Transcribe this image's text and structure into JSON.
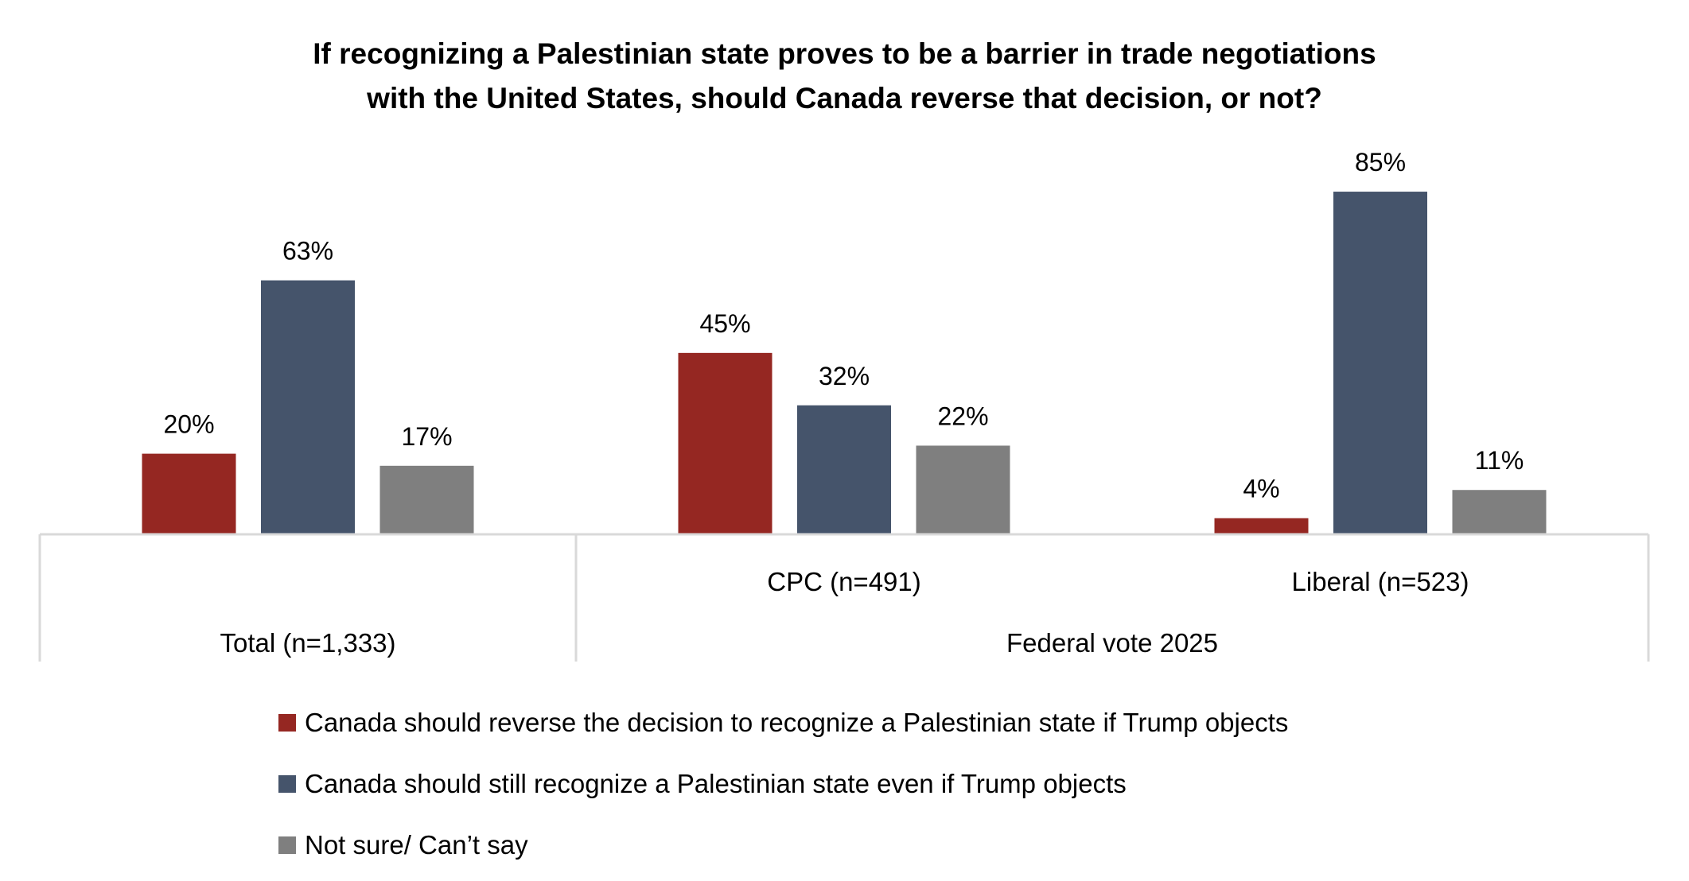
{
  "chart_data": {
    "type": "bar",
    "title": "If recognizing a Palestinian state proves to be a barrier in trade negotiations with the United States, should Canada reverse that decision, or not?",
    "title_lines": [
      "If recognizing a Palestinian state proves to be a barrier in trade negotiations",
      "with the United States, should Canada reverse that decision, or not?"
    ],
    "xlabel": "",
    "ylabel": "",
    "ylim": [
      0,
      100
    ],
    "grid": false,
    "value_suffix": "%",
    "categories": [
      "Total (n=1,333)",
      "CPC (n=491)",
      "Liberal (n=523)"
    ],
    "category_groups": [
      {
        "label": "",
        "members": [
          "Total (n=1,333)"
        ]
      },
      {
        "label": "Federal vote 2025",
        "members": [
          "CPC (n=491)",
          "Liberal (n=523)"
        ]
      }
    ],
    "series": [
      {
        "name": "Canada should reverse the decision to recognize a Palestinian state if Trump objects",
        "color": "#952722",
        "values": [
          20,
          45,
          4
        ]
      },
      {
        "name": "Canada should still recognize a Palestinian state even if Trump objects",
        "color": "#45546b",
        "values": [
          63,
          32,
          85
        ]
      },
      {
        "name": "Not sure/ Can’t say",
        "color": "#7f7f7f",
        "values": [
          17,
          22,
          11
        ]
      }
    ],
    "legend_position": "bottom"
  }
}
